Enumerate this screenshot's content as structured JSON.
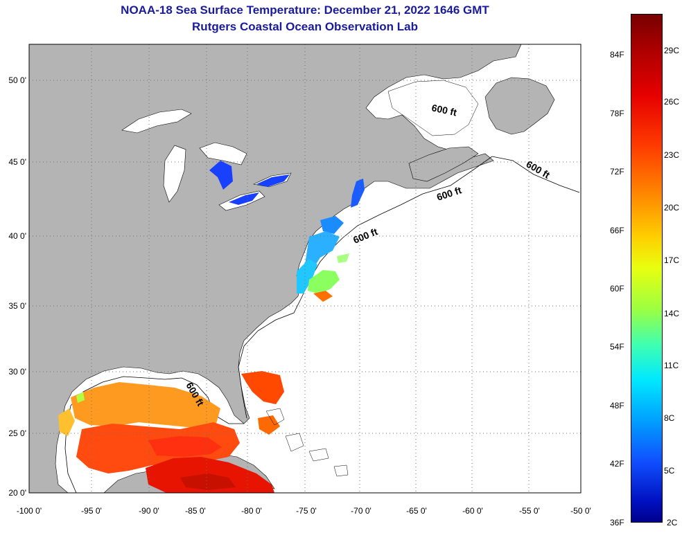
{
  "title_line1": "NOAA-18 Sea Surface Temperature:  December 21, 2022 1646 GMT",
  "title_line2": "Rutgers Coastal Ocean Observation Lab",
  "lon_ticks": [
    "-100 0'",
    "-95 0'",
    "-90 0'",
    "-85 0'",
    "-80 0'",
    "-75 0'",
    "-70 0'",
    "-65 0'",
    "-60 0'",
    "-55 0'",
    "-50 0'"
  ],
  "lat_ticks": [
    "50 0'",
    "45 0'",
    "40 0'",
    "35 0'",
    "30 0'",
    "25 0'",
    "20 0'"
  ],
  "contour_labels": [
    "600 ft",
    "600 ft",
    "600 ft",
    "600 ft",
    "600 ft"
  ],
  "colorbar": {
    "fahrenheit": [
      "84F",
      "78F",
      "72F",
      "66F",
      "60F",
      "54F",
      "48F",
      "42F",
      "36F"
    ],
    "celsius": [
      "29C",
      "26C",
      "23C",
      "20C",
      "17C",
      "14C",
      "11C",
      "8C",
      "5C",
      "2C"
    ]
  },
  "colors": {
    "land": "#b4b4b4",
    "ocean": "#ffffff",
    "title": "#1a1a9c",
    "cold": "#1040ff",
    "warm": "#ff3c00"
  }
}
